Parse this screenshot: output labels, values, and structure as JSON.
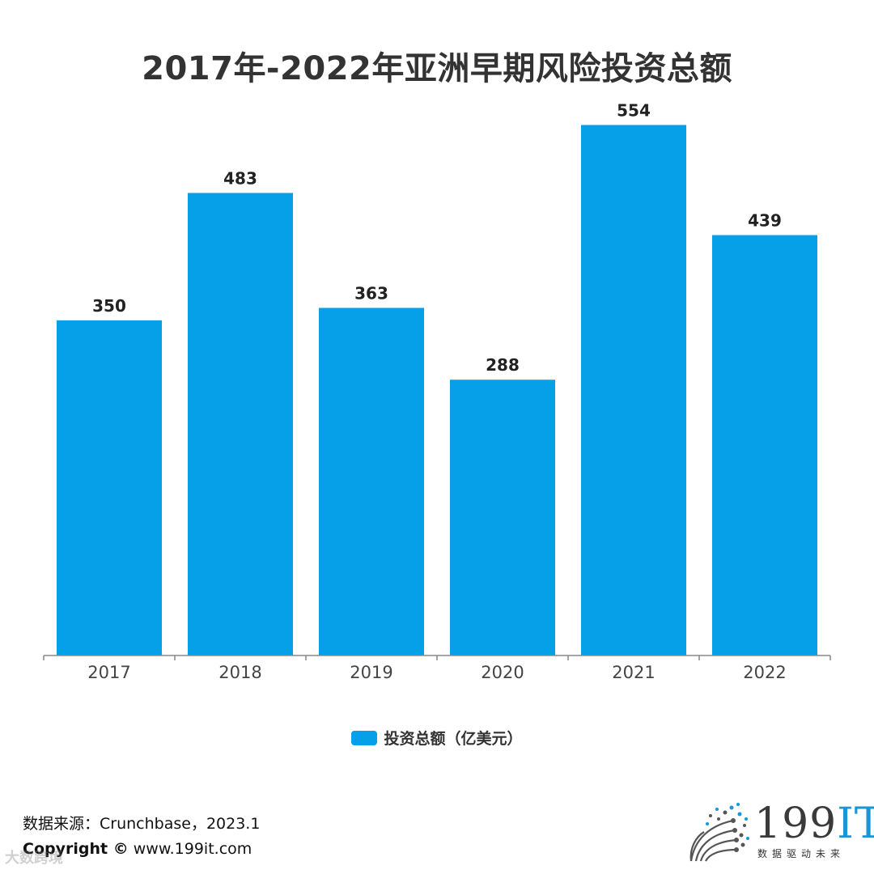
{
  "title": "2017年-2022年亚洲早期风险投资总额",
  "chart_data": {
    "type": "bar",
    "categories": [
      "2017",
      "2018",
      "2019",
      "2020",
      "2021",
      "2022"
    ],
    "series": [
      {
        "name": "投资总额（亿美元）",
        "values": [
          350,
          483,
          363,
          288,
          554,
          439
        ]
      }
    ],
    "data_labels": [
      "350",
      "483",
      "363",
      "288",
      "554",
      "439"
    ],
    "ylim": [
      0,
      600
    ],
    "grid": false,
    "legend_position": "bottom",
    "bar_color": "#05a0e8"
  },
  "legend": {
    "label": "投资总额（亿美元）",
    "color": "#05a0e8"
  },
  "footer": {
    "source": "数据来源：Crunchbase，2023.1",
    "copyright_label": "Copyright ©",
    "copyright_site": "www.199it.com"
  },
  "watermark": "大数跨境",
  "logo": {
    "name": "199",
    "accent": "IT",
    "subtitle": "数据驱动未来"
  }
}
